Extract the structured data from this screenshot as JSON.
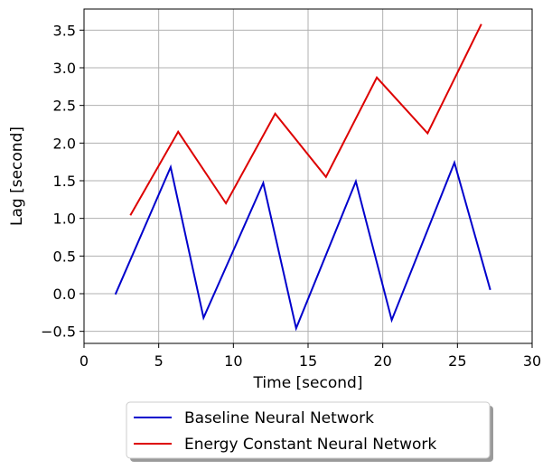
{
  "chart_data": {
    "type": "line",
    "xlabel": "Time [second]",
    "ylabel": "Lag [second]",
    "xlim": [
      0,
      30
    ],
    "ylim": [
      -0.66,
      3.78
    ],
    "xticks": [
      0,
      5,
      10,
      15,
      20,
      25,
      30
    ],
    "xtick_labels": [
      "0",
      "5",
      "10",
      "15",
      "20",
      "25",
      "30"
    ],
    "yticks": [
      -0.5,
      0.0,
      0.5,
      1.0,
      1.5,
      2.0,
      2.5,
      3.0,
      3.5
    ],
    "ytick_labels": [
      "−0.5",
      "0.0",
      "0.5",
      "1.0",
      "1.5",
      "2.0",
      "2.5",
      "3.0",
      "3.5"
    ],
    "grid": true,
    "legend_position": "below-center",
    "series": [
      {
        "name": "Baseline Neural Network",
        "color": "#0000cc",
        "x": [
          2.1,
          5.8,
          8.0,
          12.0,
          14.2,
          18.2,
          20.6,
          24.8,
          27.2
        ],
        "y": [
          -0.01,
          1.68,
          -0.32,
          1.47,
          -0.46,
          1.49,
          -0.35,
          1.74,
          0.05
        ]
      },
      {
        "name": "Energy Constant Neural Network",
        "color": "#dd0000",
        "x": [
          3.1,
          6.3,
          9.5,
          12.8,
          16.2,
          19.6,
          23.0,
          26.6
        ],
        "y": [
          1.04,
          2.15,
          1.2,
          2.39,
          1.55,
          2.87,
          2.13,
          3.58
        ]
      }
    ]
  }
}
